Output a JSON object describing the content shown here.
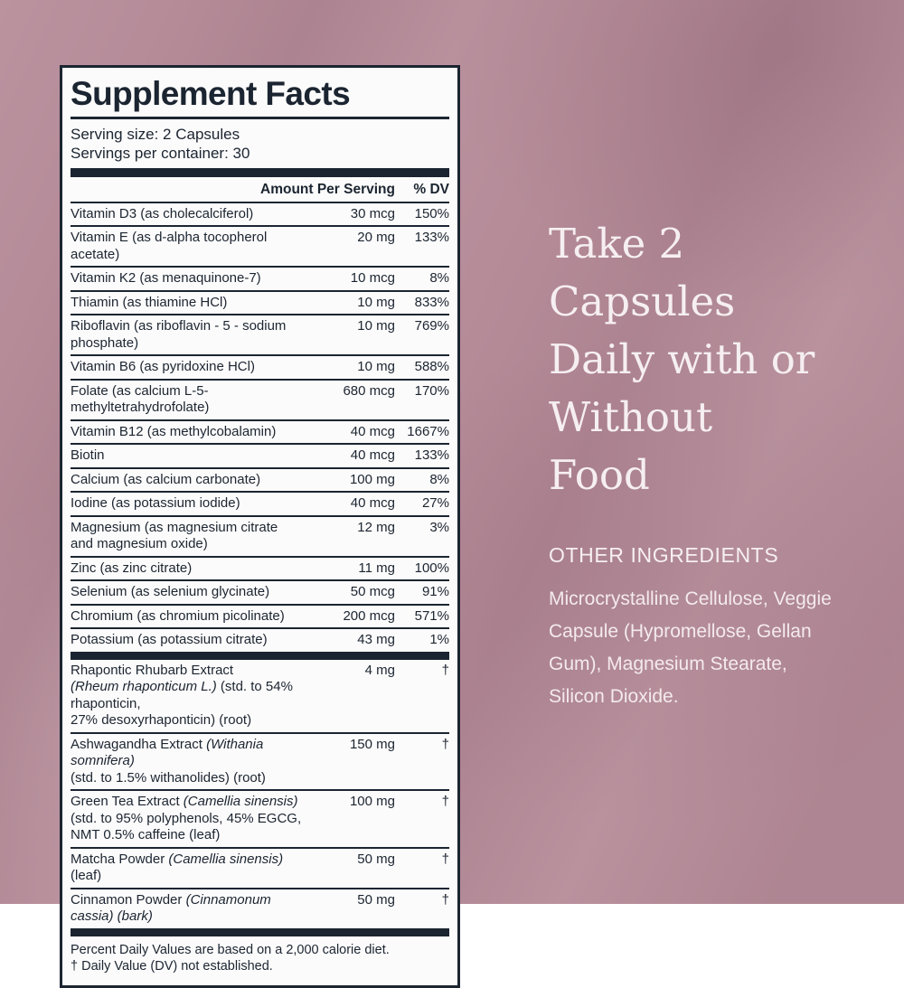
{
  "theme": {
    "navy": "#1b2531",
    "panel_bg": "#fcfbfb",
    "pink": "#b58b98",
    "white_text": "#f6eff2"
  },
  "label_panel": {
    "title": "Supplement Facts",
    "serving_size": "Serving size: 2 Capsules",
    "servings_per_container": "Servings per container: 30",
    "header": {
      "amount": "Amount Per Serving",
      "dv": "% DV"
    },
    "sections": [
      {
        "rows": [
          {
            "lines": [
              [
                {
                  "t": "Vitamin D3 (as cholecalciferol)",
                  "i": false
                }
              ]
            ],
            "amount": "30 mcg",
            "dv": "150%"
          },
          {
            "lines": [
              [
                {
                  "t": "Vitamin E (as d-alpha tocopherol acetate)",
                  "i": false
                }
              ]
            ],
            "amount": "20 mg",
            "dv": "133%"
          },
          {
            "lines": [
              [
                {
                  "t": "Vitamin K2 (as menaquinone-7)",
                  "i": false
                }
              ]
            ],
            "amount": "10 mcg",
            "dv": "8%"
          },
          {
            "lines": [
              [
                {
                  "t": "Thiamin (as thiamine HCl)",
                  "i": false
                }
              ]
            ],
            "amount": "10 mg",
            "dv": "833%"
          },
          {
            "lines": [
              [
                {
                  "t": "Riboflavin (as riboflavin - 5 - sodium phosphate)",
                  "i": false
                }
              ]
            ],
            "amount": "10 mg",
            "dv": "769%"
          },
          {
            "lines": [
              [
                {
                  "t": "Vitamin B6 (as pyridoxine HCl)",
                  "i": false
                }
              ]
            ],
            "amount": "10 mg",
            "dv": "588%"
          },
          {
            "lines": [
              [
                {
                  "t": "Folate (as calcium L-5-methyltetrahydrofolate)",
                  "i": false
                }
              ]
            ],
            "amount": "680 mcg",
            "dv": "170%"
          },
          {
            "lines": [
              [
                {
                  "t": "Vitamin B12 (as methylcobalamin)",
                  "i": false
                }
              ]
            ],
            "amount": "40 mcg",
            "dv": "1667%"
          },
          {
            "lines": [
              [
                {
                  "t": "Biotin",
                  "i": false
                }
              ]
            ],
            "amount": "40 mcg",
            "dv": "133%"
          },
          {
            "lines": [
              [
                {
                  "t": "Calcium (as calcium carbonate)",
                  "i": false
                }
              ]
            ],
            "amount": "100 mg",
            "dv": "8%"
          },
          {
            "lines": [
              [
                {
                  "t": "Iodine (as potassium iodide)",
                  "i": false
                }
              ]
            ],
            "amount": "40 mcg",
            "dv": "27%"
          },
          {
            "lines": [
              [
                {
                  "t": "Magnesium (as magnesium citrate",
                  "i": false
                }
              ],
              [
                {
                  "t": "and magnesium oxide)",
                  "i": false
                }
              ]
            ],
            "amount": "12 mg",
            "dv": "3%"
          },
          {
            "lines": [
              [
                {
                  "t": "Zinc (as zinc citrate)",
                  "i": false
                }
              ]
            ],
            "amount": "11 mg",
            "dv": "100%"
          },
          {
            "lines": [
              [
                {
                  "t": "Selenium (as selenium glycinate)",
                  "i": false
                }
              ]
            ],
            "amount": "50 mcg",
            "dv": "91%"
          },
          {
            "lines": [
              [
                {
                  "t": "Chromium (as chromium picolinate)",
                  "i": false
                }
              ]
            ],
            "amount": "200 mcg",
            "dv": "571%"
          },
          {
            "lines": [
              [
                {
                  "t": "Potassium (as potassium citrate)",
                  "i": false
                }
              ]
            ],
            "amount": "43 mg",
            "dv": "1%"
          }
        ]
      },
      {
        "rows": [
          {
            "lines": [
              [
                {
                  "t": "Rhapontic Rhubarb Extract",
                  "i": false
                }
              ],
              [
                {
                  "t": "(Rheum rhaponticum L.)",
                  "i": true
                },
                {
                  "t": " (std. to 54% rhaponticin,",
                  "i": false
                }
              ],
              [
                {
                  "t": "27% desoxyrhaponticin) (root)",
                  "i": false
                }
              ]
            ],
            "amount": "4 mg",
            "dv": "†"
          },
          {
            "lines": [
              [
                {
                  "t": "Ashwagandha Extract ",
                  "i": false
                },
                {
                  "t": "(Withania somnifera)",
                  "i": true
                }
              ],
              [
                {
                  "t": "(std. to 1.5% withanolides) (root)",
                  "i": false
                }
              ]
            ],
            "amount": "150 mg",
            "dv": "†"
          },
          {
            "lines": [
              [
                {
                  "t": "Green Tea Extract ",
                  "i": false
                },
                {
                  "t": "(Camellia sinensis)",
                  "i": true
                }
              ],
              [
                {
                  "t": "(std. to 95% polyphenols, 45% EGCG,",
                  "i": false
                }
              ],
              [
                {
                  "t": "NMT 0.5% caffeine (leaf)",
                  "i": false
                }
              ]
            ],
            "amount": "100 mg",
            "dv": "†"
          },
          {
            "lines": [
              [
                {
                  "t": "Matcha Powder ",
                  "i": false
                },
                {
                  "t": "(Camellia sinensis)",
                  "i": true
                },
                {
                  "t": " (leaf)",
                  "i": false
                }
              ]
            ],
            "amount": "50 mg",
            "dv": "†"
          },
          {
            "lines": [
              [
                {
                  "t": "Cinnamon Powder ",
                  "i": false
                },
                {
                  "t": "(Cinnamonum cassia) (bark)",
                  "i": true
                }
              ]
            ],
            "amount": "50 mg",
            "dv": "†"
          }
        ]
      }
    ],
    "footnote_lines": [
      "Percent Daily Values are based on a 2,000 calorie diet.",
      "† Daily Value (DV) not established."
    ]
  },
  "right_panel": {
    "headline": "Take 2 Capsules Daily with or Without Food",
    "other_ingredients_title": "OTHER INGREDIENTS",
    "other_ingredients_text": "Microcrystalline Cellulose, Veggie Capsule (Hypromellose, Gellan Gum), Magnesium Stearate, Silicon Dioxide."
  }
}
